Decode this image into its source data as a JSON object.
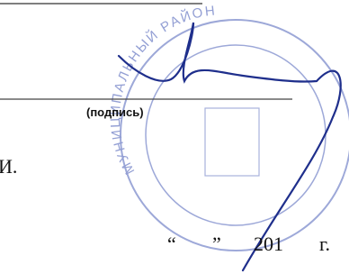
{
  "signature_block": {
    "caption": "(подпись)",
    "initial": "И.",
    "open_quote": "“",
    "close_quote": "”",
    "year_prefix": "201",
    "year_suffix": "г."
  },
  "stamp": {
    "text": "МУНИЦИПАЛЬНЫЙ РАЙОН"
  }
}
